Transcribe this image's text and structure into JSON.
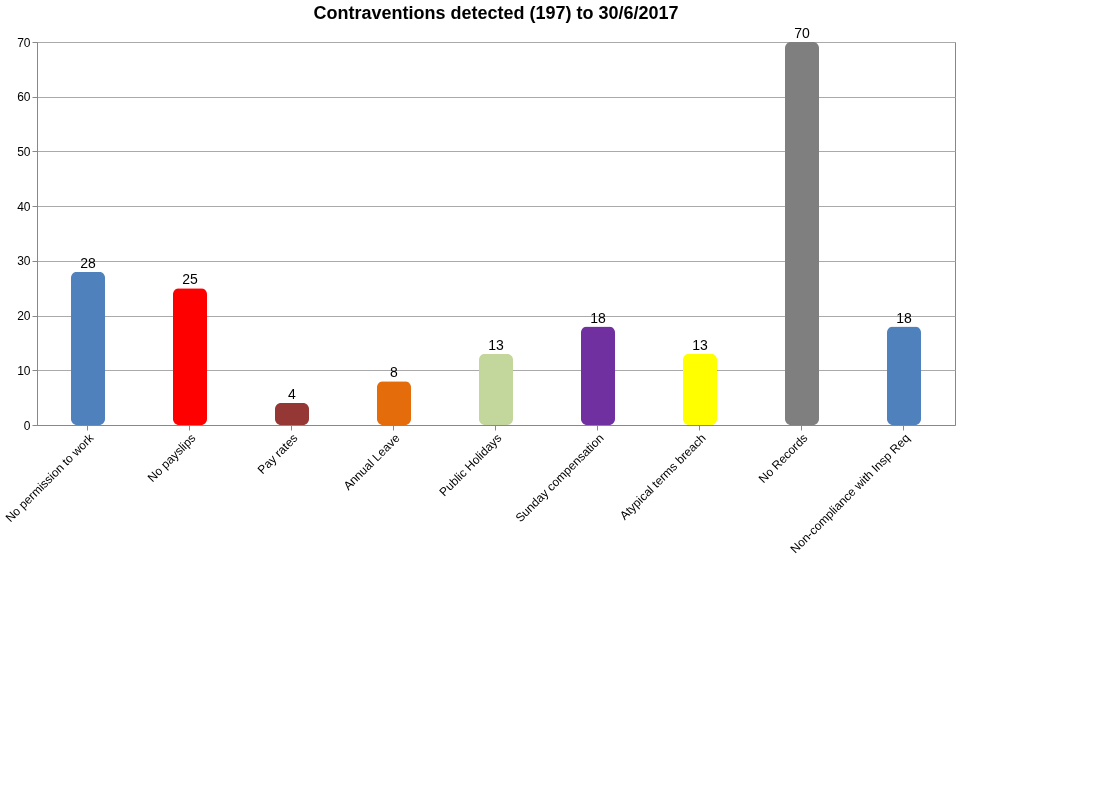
{
  "chart_data": {
    "type": "bar",
    "title": "Contraventions detected (197) to 30/6/2017",
    "categories": [
      "No permission to work",
      "No payslips",
      "Pay rates",
      "Annual Leave",
      "Public Holidays",
      "Sunday compensation",
      "Atypical terms breach",
      "No Records",
      "Non-compliance with Insp Req"
    ],
    "values": [
      28,
      25,
      4,
      8,
      13,
      18,
      13,
      70,
      18
    ],
    "colors": [
      "#4f81bd",
      "#ff0000",
      "#953735",
      "#e46c0a",
      "#c3d69b",
      "#7030a0",
      "#ffff00",
      "#7f7f7f",
      "#4f81bd"
    ],
    "ylim": [
      0,
      70
    ],
    "yticks": [
      0,
      10,
      20,
      30,
      40,
      50,
      60,
      70
    ],
    "grid": "y",
    "data_labels": true
  }
}
